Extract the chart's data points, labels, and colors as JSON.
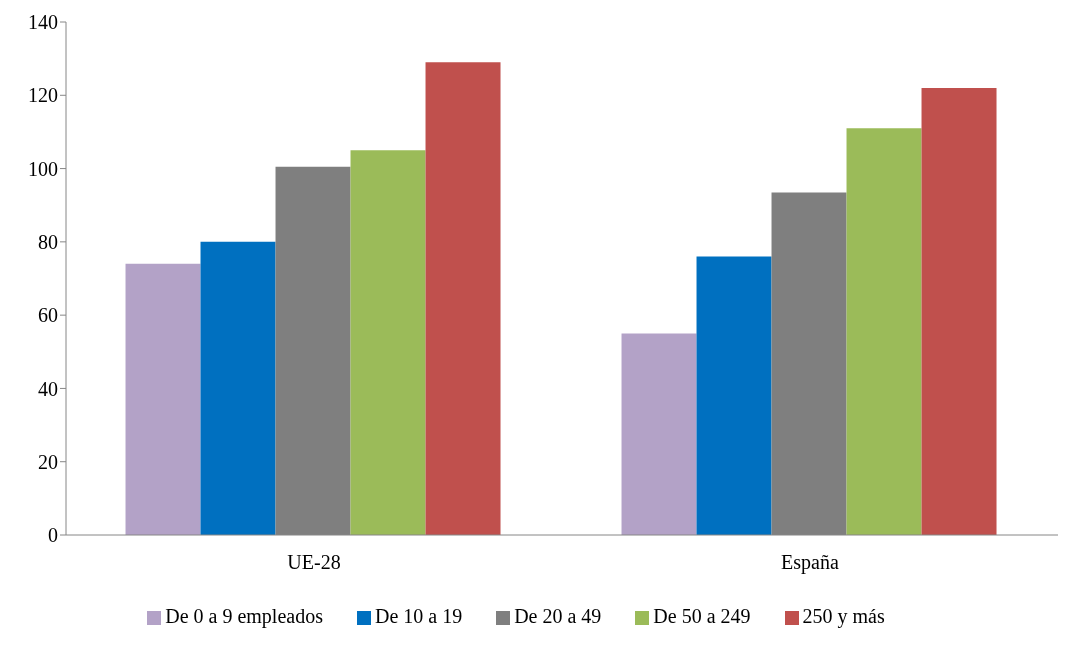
{
  "chart_data": {
    "type": "bar",
    "categories": [
      "UE-28",
      "España"
    ],
    "series": [
      {
        "name": "De 0 a 9 empleados",
        "color": "#b3a2c7",
        "values": [
          74,
          55
        ]
      },
      {
        "name": "De 10 a 19",
        "color": "#0070c0",
        "values": [
          80,
          76
        ]
      },
      {
        "name": "De 20 a 49",
        "color": "#7f7f7f",
        "values": [
          100.5,
          93.5
        ]
      },
      {
        "name": "De 50 a 249",
        "color": "#9bbb59",
        "values": [
          105,
          111
        ]
      },
      {
        "name": "250 y más",
        "color": "#c0504d",
        "values": [
          129,
          122
        ]
      }
    ],
    "ylim": [
      0,
      140
    ],
    "yticks": [
      0,
      20,
      40,
      60,
      80,
      100,
      120,
      140
    ],
    "grid": false,
    "legend": "bottom"
  }
}
